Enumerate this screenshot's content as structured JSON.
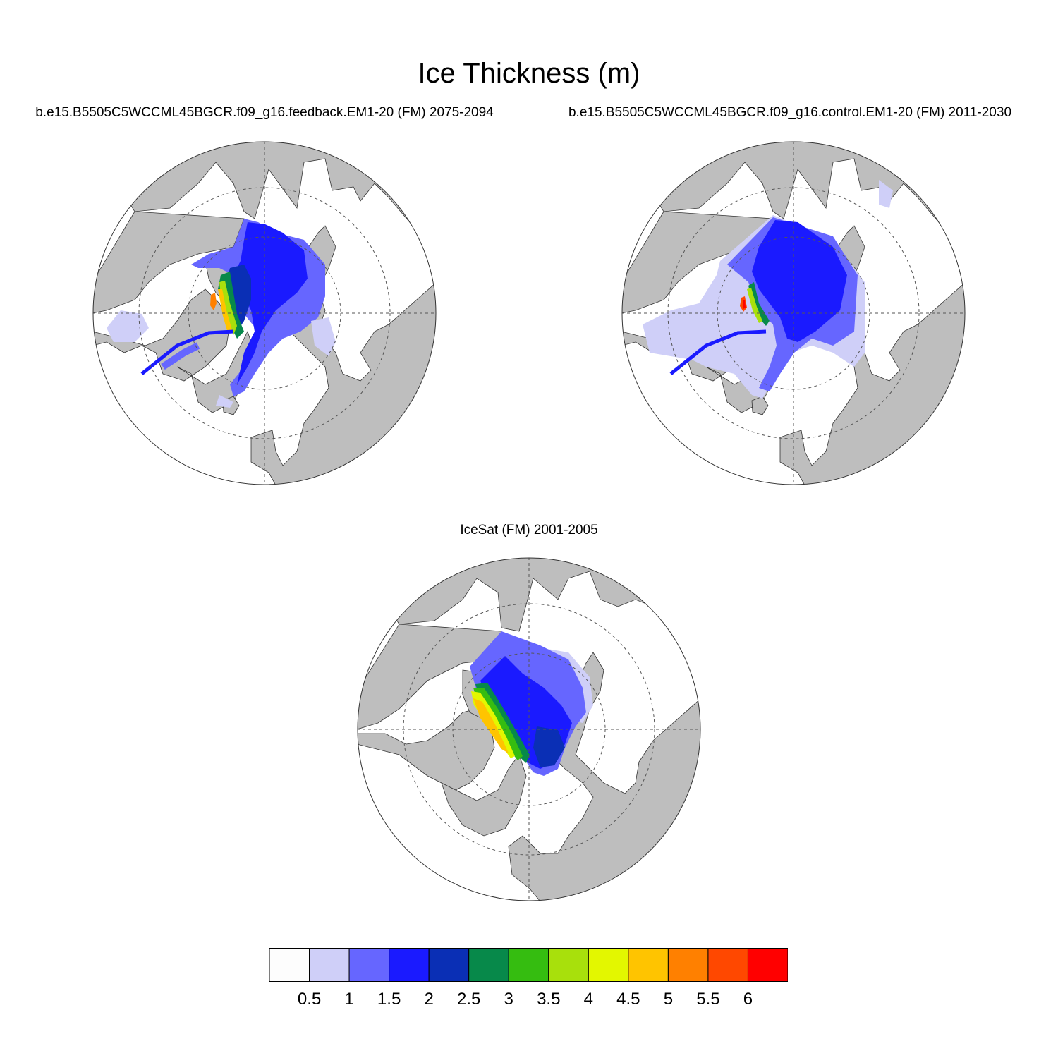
{
  "title": "Ice Thickness (m)",
  "panels": [
    {
      "title": "b.e15.B5505C5WCCML45BGCR.f09_g16.feedback.EM1-20 (FM) 2075-2094"
    },
    {
      "title": "b.e15.B5505C5WCCML45BGCR.f09_g16.control.EM1-20 (FM) 2011-2030"
    },
    {
      "title": "IceSat (FM) 2001-2005"
    }
  ],
  "colorbar": {
    "units": "m",
    "levels": [
      "0.5",
      "1",
      "1.5",
      "2",
      "2.5",
      "3",
      "3.5",
      "4",
      "4.5",
      "5",
      "5.5",
      "6"
    ],
    "colors": [
      "#fdfdfd",
      "#cfcff8",
      "#6666ff",
      "#1a1aff",
      "#0a2fb5",
      "#07894a",
      "#35bd10",
      "#a8e00c",
      "#e3f700",
      "#ffc400",
      "#ff8000",
      "#ff4800",
      "#ff0000"
    ]
  },
  "map_colors": {
    "land": "#bebebe",
    "ocean": "#ffffff",
    "grid": "#555555"
  }
}
